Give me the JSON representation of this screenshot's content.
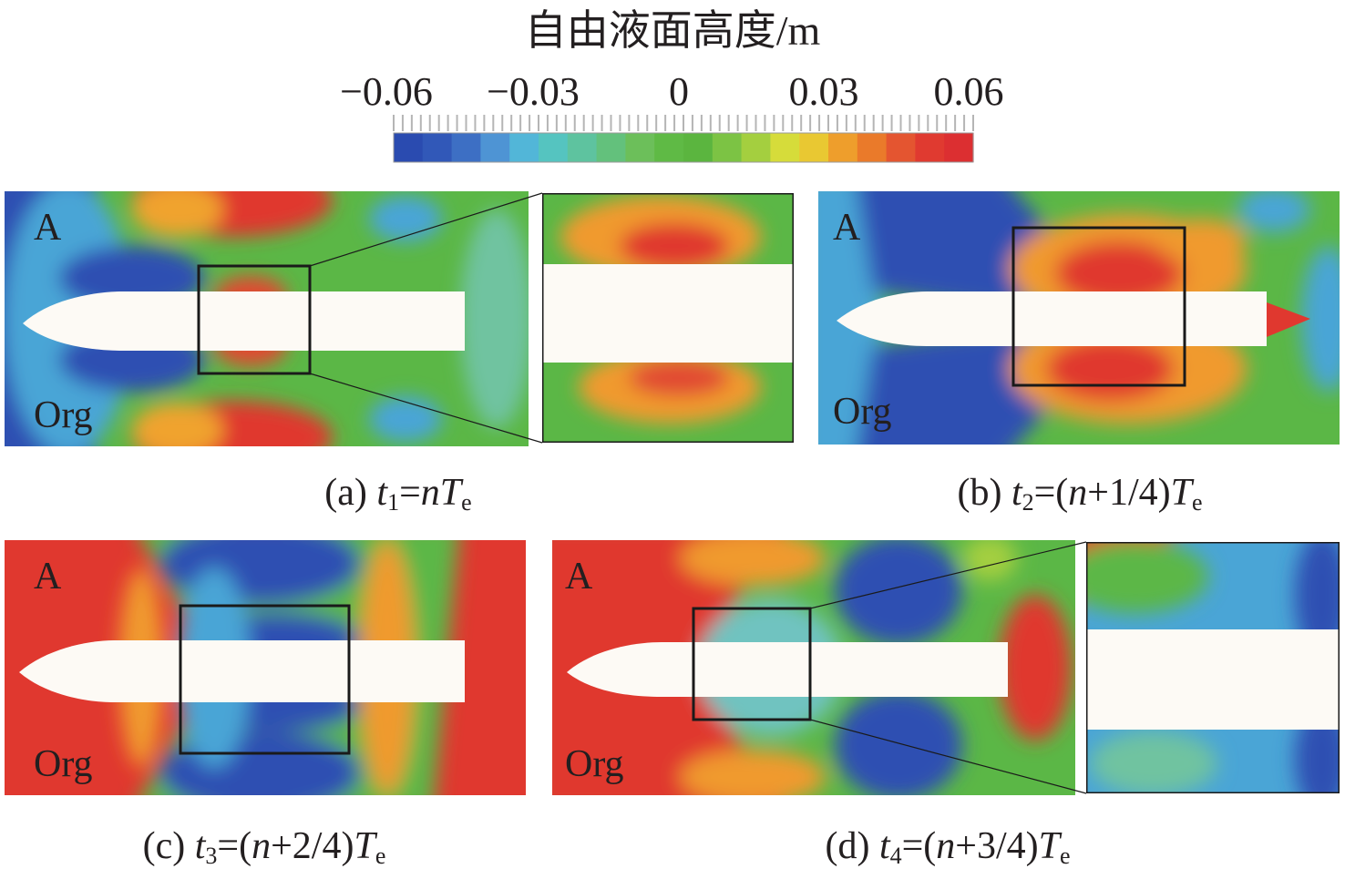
{
  "colorbar": {
    "title": "自由液面高度/m",
    "ticks": [
      "−0.06",
      "−0.03",
      "0",
      "0.03",
      "0.06"
    ],
    "colors": [
      "#2a4bb0",
      "#3158b8",
      "#3d6fc4",
      "#4e94d4",
      "#52b6d8",
      "#55c4c0",
      "#5ec39f",
      "#63c17c",
      "#6cbf5a",
      "#5fba45",
      "#5bb53f",
      "#7cc344",
      "#a4cf3f",
      "#d6dc3a",
      "#e9c832",
      "#ee9e2c",
      "#ea7a2a",
      "#e45530",
      "#e03a30",
      "#dc2f31"
    ]
  },
  "panels": [
    {
      "label_a": "A",
      "label_org": "Org",
      "caption": {
        "pre": "(a) ",
        "t": "t",
        "sub": "1",
        "mid": "=",
        "n": "n",
        "plus": "",
        "T": "T",
        "e": "e"
      }
    },
    {
      "label_a": "A",
      "label_org": "Org",
      "caption": {
        "pre": "(b) ",
        "t": "t",
        "sub": "2",
        "mid": "=(",
        "n": "n",
        "plus": "+1/4)",
        "T": "T",
        "e": "e"
      }
    },
    {
      "label_a": "A",
      "label_org": "Org",
      "caption": {
        "pre": "(c) ",
        "t": "t",
        "sub": "3",
        "mid": "=(",
        "n": "n",
        "plus": "+2/4)",
        "T": "T",
        "e": "e"
      }
    },
    {
      "label_a": "A",
      "label_org": "Org",
      "caption": {
        "pre": "(d) ",
        "t": "t",
        "sub": "4",
        "mid": "=(",
        "n": "n",
        "plus": "+3/4)",
        "T": "T",
        "e": "e"
      }
    }
  ]
}
